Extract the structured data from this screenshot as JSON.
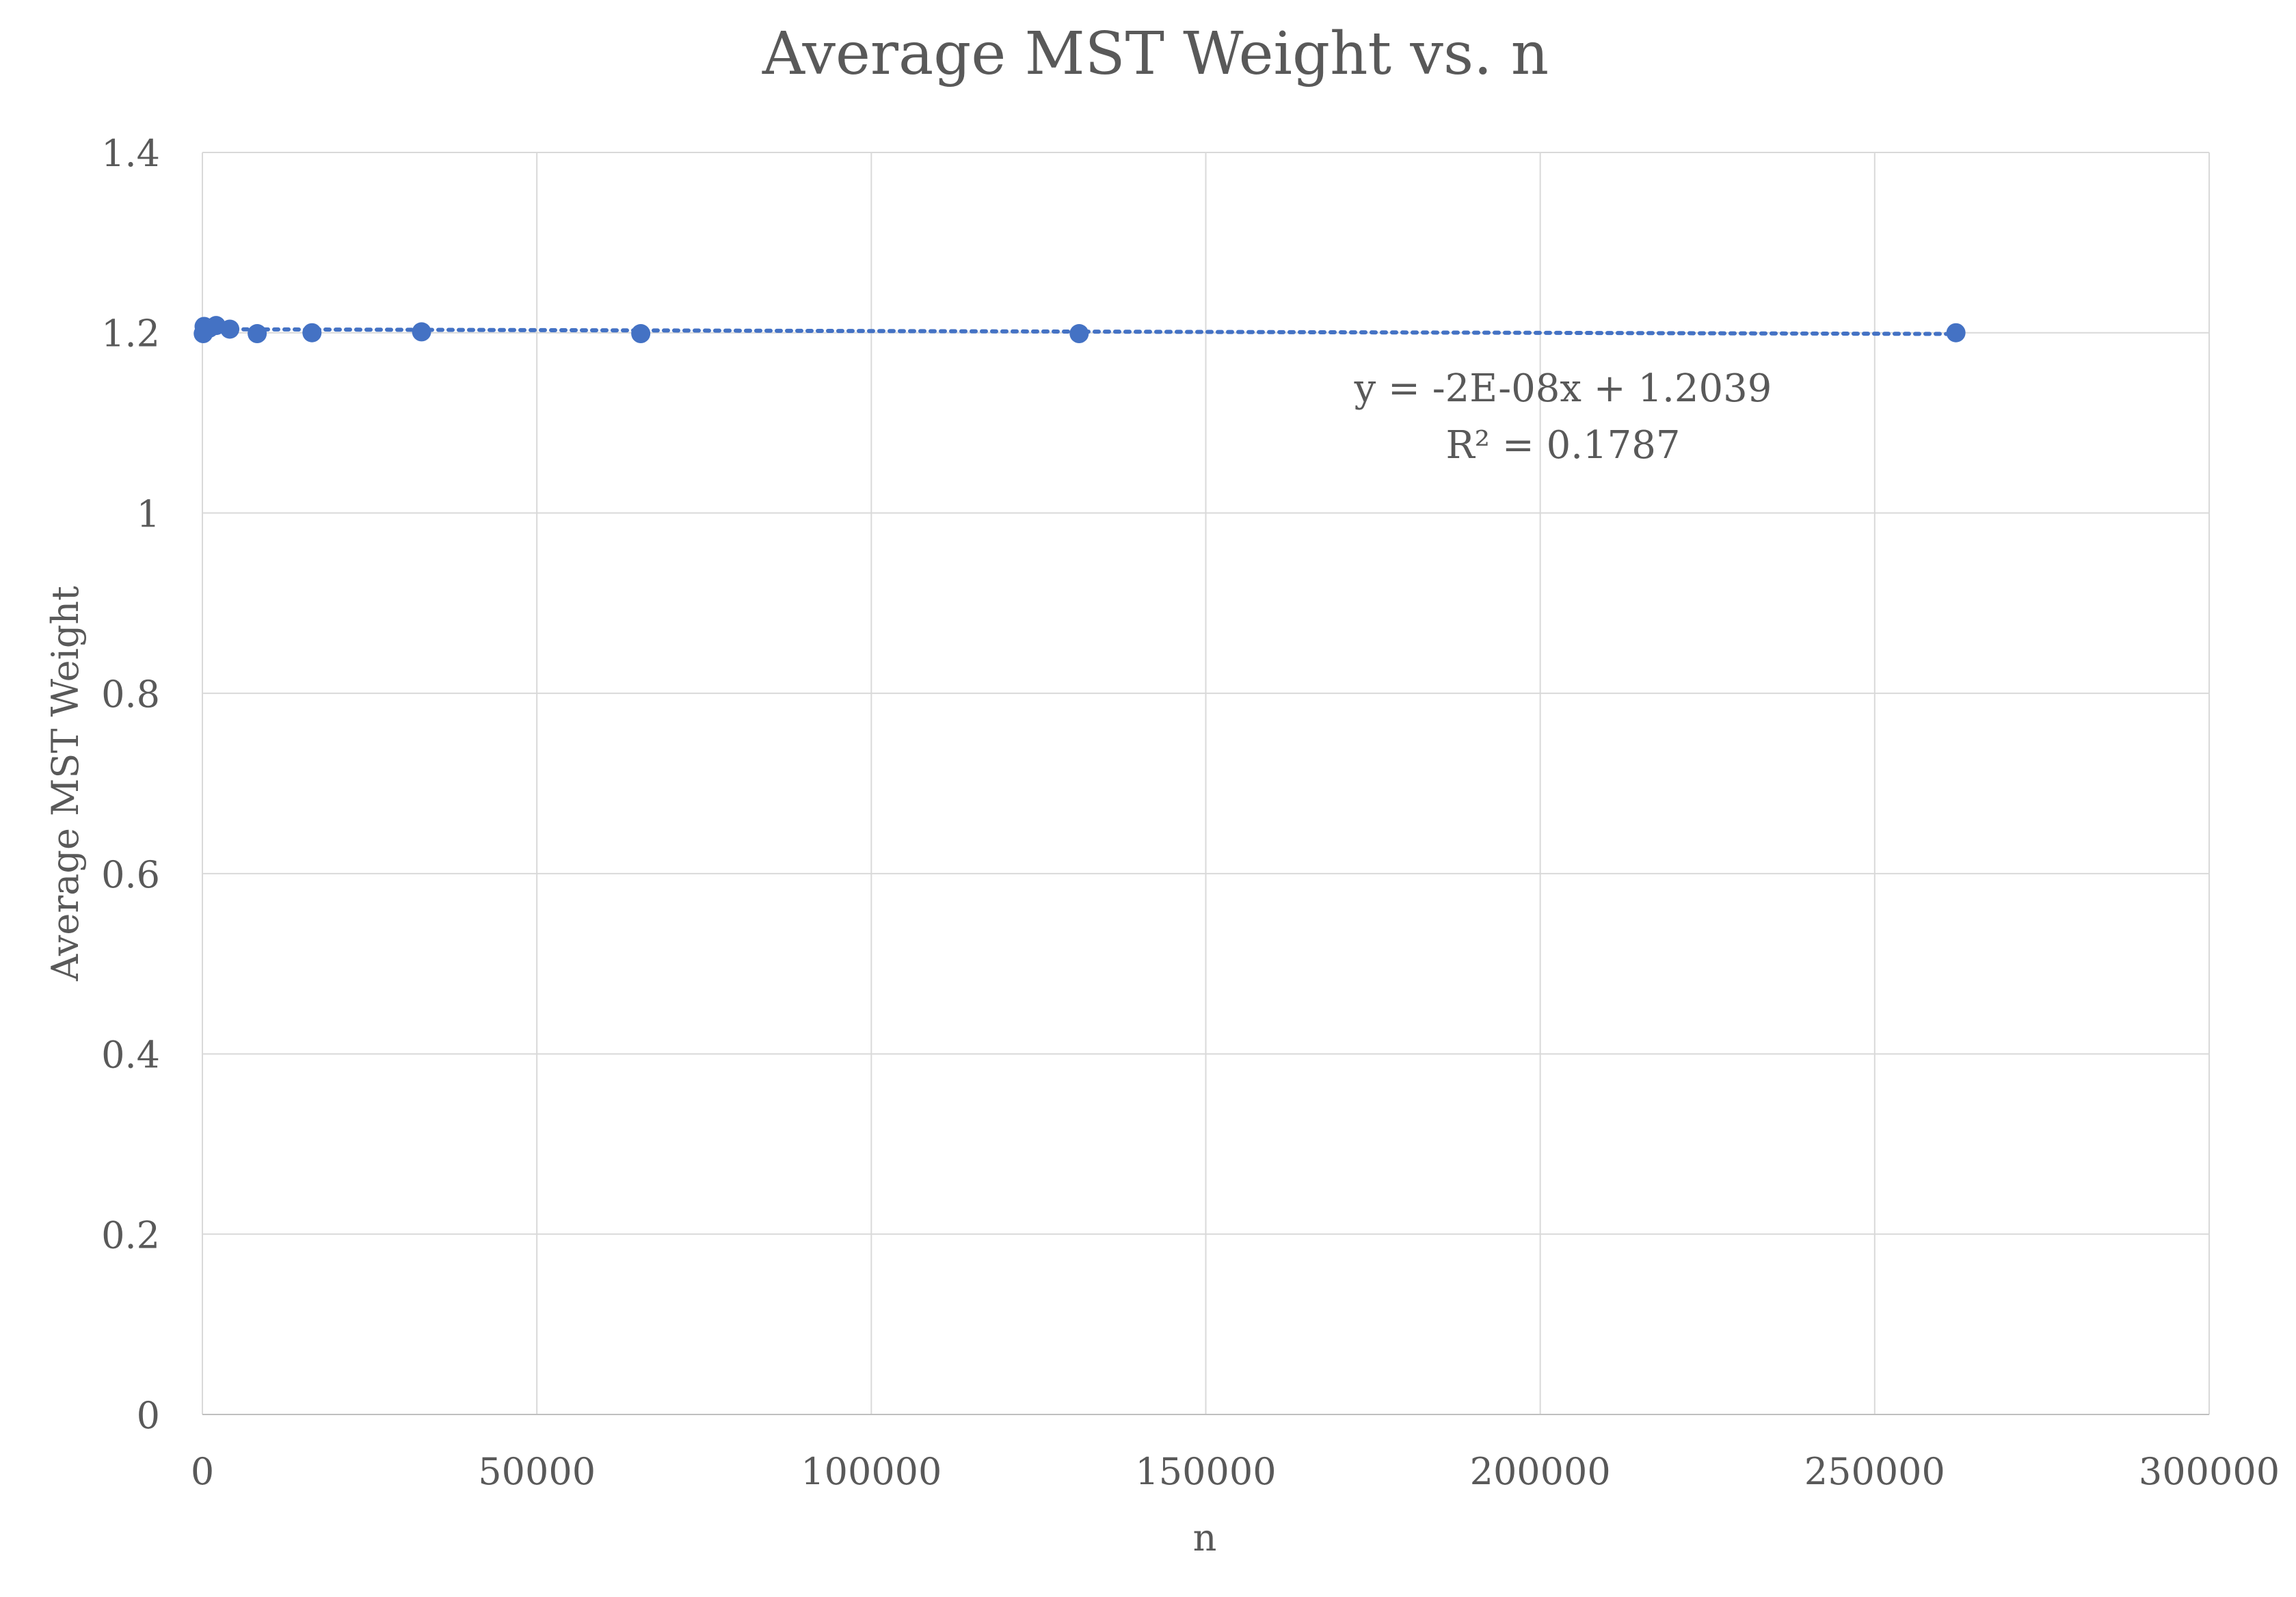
{
  "chart_data": {
    "type": "scatter",
    "title": "Average MST Weight vs. n",
    "xlabel": "n",
    "ylabel": "Average MST Weight",
    "xlim": [
      0,
      300000
    ],
    "ylim": [
      0,
      1.4
    ],
    "x_ticks": [
      "0",
      "50000",
      "100000",
      "150000",
      "200000",
      "250000",
      "300000"
    ],
    "y_ticks": [
      "0",
      "0.2",
      "0.4",
      "0.6",
      "0.8",
      "1",
      "1.2",
      "1.4"
    ],
    "grid": true,
    "legend": "none",
    "series": [
      {
        "marker_color": "#4472C4",
        "x": [
          128,
          256,
          512,
          1024,
          2048,
          4096,
          8192,
          16384,
          32768,
          65536,
          131072,
          262144
        ],
        "y": [
          1.199,
          1.207,
          1.203,
          1.205,
          1.208,
          1.204,
          1.199,
          1.2,
          1.201,
          1.199,
          1.199,
          1.2
        ]
      }
    ],
    "trendline": {
      "type": "linear",
      "style": "dotted",
      "color": "#4472C4",
      "slope": -2e-08,
      "intercept": 1.2039,
      "equation_label": "y = -2E-08x + 1.2039",
      "r2_label": "R² = 0.1787"
    }
  }
}
